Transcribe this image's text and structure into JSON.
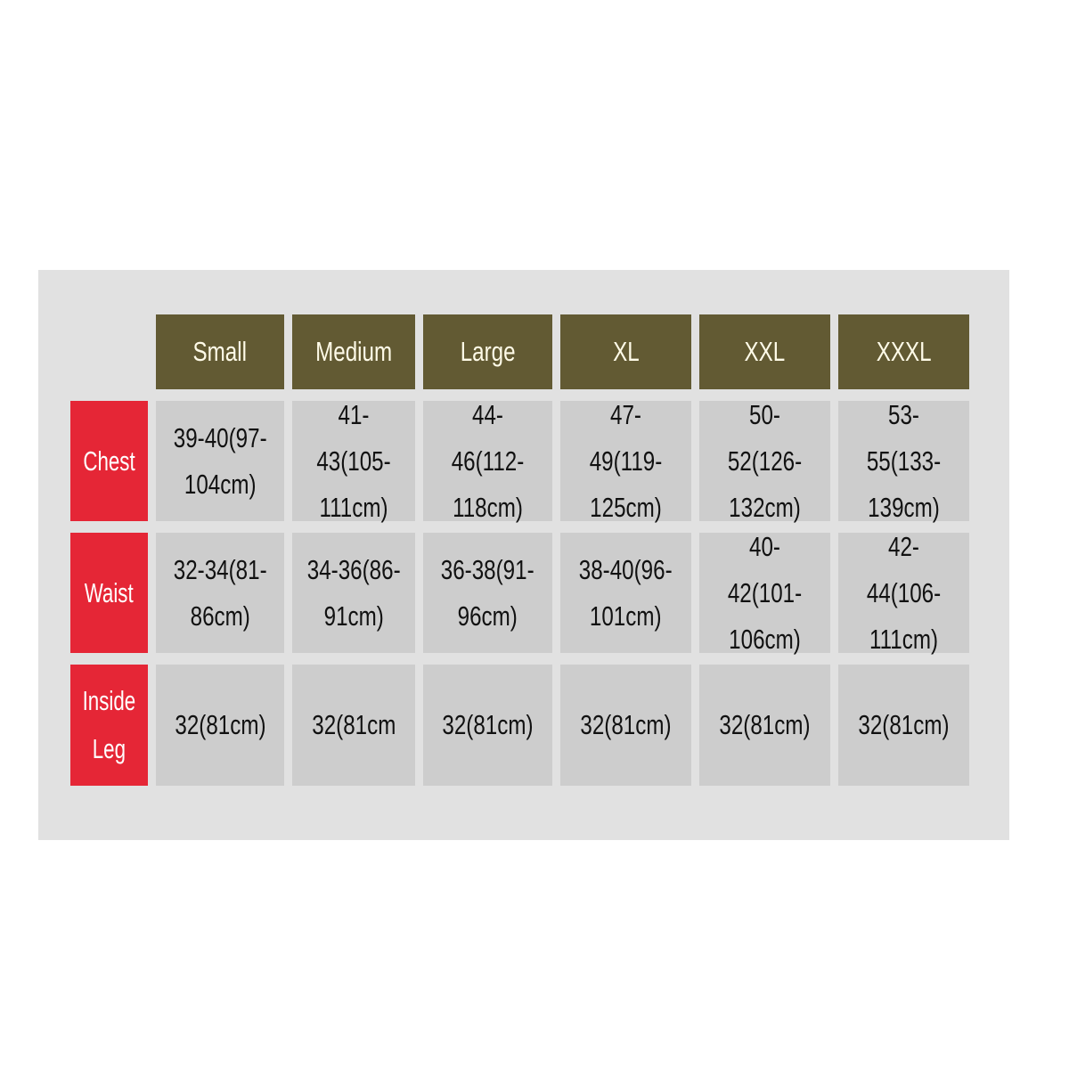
{
  "colors": {
    "header_bg": "#625a33",
    "row_label_bg": "#e52636",
    "cell_bg": "#cdcdcd",
    "panel_bg": "#e1e1e1"
  },
  "sizes": [
    "Small",
    "Medium",
    "Large",
    "XL",
    "XXL",
    "XXXL"
  ],
  "rows": [
    {
      "label": "Chest",
      "values": [
        "39-40(97-\n104cm)",
        "41-43(105-\n111cm)",
        "44-46(112-\n118cm)",
        "47-49(119-\n125cm)",
        "50-52(126-\n132cm)",
        "53-55(133-\n139cm)"
      ]
    },
    {
      "label": "Waist",
      "values": [
        "32-34(81-\n86cm)",
        "34-36(86-\n91cm)",
        "36-38(91-\n96cm)",
        "38-40(96-\n101cm)",
        "40-42(101-\n106cm)",
        "42-44(106-\n111cm)"
      ]
    },
    {
      "label": "Inside\nLeg",
      "values": [
        "32(81cm)",
        "32(81cm",
        "32(81cm)",
        "32(81cm)",
        "32(81cm)",
        "32(81cm)"
      ]
    }
  ]
}
